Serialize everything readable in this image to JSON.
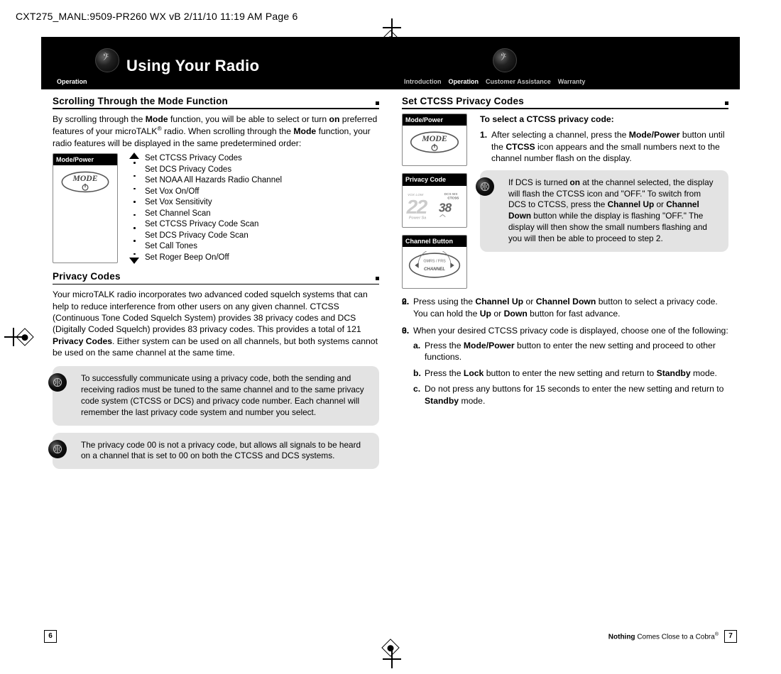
{
  "slug_line": "CXT275_MANL:9509-PR260 WX vB  2/11/10  11:19 AM  Page 6",
  "left": {
    "ribbon_label": "Operation",
    "title": "Using Your Radio",
    "h1": "Scrolling Through the Mode Function",
    "intro_pre": "By scrolling through the ",
    "intro_b1": "Mode",
    "intro_mid1": " function, you will be able to select or turn ",
    "intro_b2": "on",
    "intro_mid2": " preferred features of your microTALK",
    "intro_reg": "®",
    "intro_mid3": " radio. When scrolling through the ",
    "intro_b3": "Mode",
    "intro_end": " function, your radio features will be displayed in the same predetermined order:",
    "card_mode_label": "Mode/Power",
    "mode_list": [
      "Set CTCSS Privacy Codes",
      "Set DCS Privacy Codes",
      "Set NOAA All Hazards Radio Channel",
      "Set Vox On/Off",
      "Set Vox Sensitivity",
      "Set Channel Scan",
      "Set CTCSS Privacy Code Scan",
      "Set DCS Privacy Code Scan",
      "Set Call Tones",
      "Set Roger Beep On/Off"
    ],
    "h2": "Privacy Codes",
    "pc_p1a": "Your microTALK radio incorporates two advanced coded squelch systems that can help to reduce interference from other users on any given channel. CTCSS (Continuous Tone Coded Squelch System) provides 38 privacy codes and DCS (Digitally Coded Squelch) provides 83 privacy codes. This provides a total of 121 ",
    "pc_p1b": "Privacy Codes",
    "pc_p1c": ". Either system can be used on all channels, but both systems cannot be used on the same channel at the same time.",
    "note1": "To successfully communicate using a privacy code, both the sending and receiving radios must be tuned to the same channel and to the same privacy code system (CTCSS or DCS) and privacy code number. Each channel will remember the last privacy code system and number you select.",
    "note2": "The privacy code 00 is not a privacy code, but allows all signals to be heard on a channel that is set to 00 on both the CTCSS and DCS systems.",
    "page_num": "6"
  },
  "right": {
    "tabs": {
      "intro": "Introduction",
      "op": "Operation",
      "ca": "Customer Assistance",
      "war": "Warranty"
    },
    "h1": "Set CTCSS Privacy Codes",
    "card_mode_label": "Mode/Power",
    "card_priv_label": "Privacy Code",
    "card_chan_label": "Channel Button",
    "lead": "To select a CTCSS privacy code:",
    "s1a": "After selecting a channel, press the ",
    "s1b": "Mode/Power",
    "s1c": " button until the ",
    "s1d": "CTCSS",
    "s1e": " icon appears and the small numbers next to the channel number flash on the display.",
    "note_a": "If DCS is turned ",
    "note_b": "on",
    "note_c": " at the channel selected, the display will flash the CTCSS icon and \"OFF.\" To switch from DCS to CTCSS, press the ",
    "note_d": "Channel Up",
    "note_e": " or ",
    "note_f": "Channel Down",
    "note_g": " button while the display is flashing \"OFF.\" The display will then show the small numbers flashing and you will then be able to proceed to step 2.",
    "s2a": "Press using the ",
    "s2b": "Channel Up",
    "s2c": " or ",
    "s2d": "Channel Down",
    "s2e": " button to select a privacy code. You can hold the ",
    "s2f": "Up",
    "s2g": " or ",
    "s2h": "Down",
    "s2i": " button for fast advance.",
    "s3": "When your desired CTCSS privacy code is displayed, choose one of the following:",
    "s3a_a": "Press the ",
    "s3a_b": "Mode/Power",
    "s3a_c": " button to enter the new setting and proceed to other functions.",
    "s3b_a": "Press the ",
    "s3b_b": "Lock",
    "s3b_c": " button to enter the new setting and return to ",
    "s3b_d": "Standby",
    "s3b_e": " mode.",
    "s3c_a": "Do not press any buttons for 15 seconds to enter the new setting and return to ",
    "s3c_b": "Standby",
    "s3c_c": " mode.",
    "tagline_b": "Nothing",
    "tagline_rest": " Comes Close to a Cobra",
    "tagline_reg": "®",
    "page_num": "7"
  },
  "lcd": {
    "big": "22",
    "small": "38",
    "tags": [
      "DCS",
      "WX",
      "CTCSS"
    ],
    "power": "Power Sa",
    "vox": "VOX LOW"
  }
}
